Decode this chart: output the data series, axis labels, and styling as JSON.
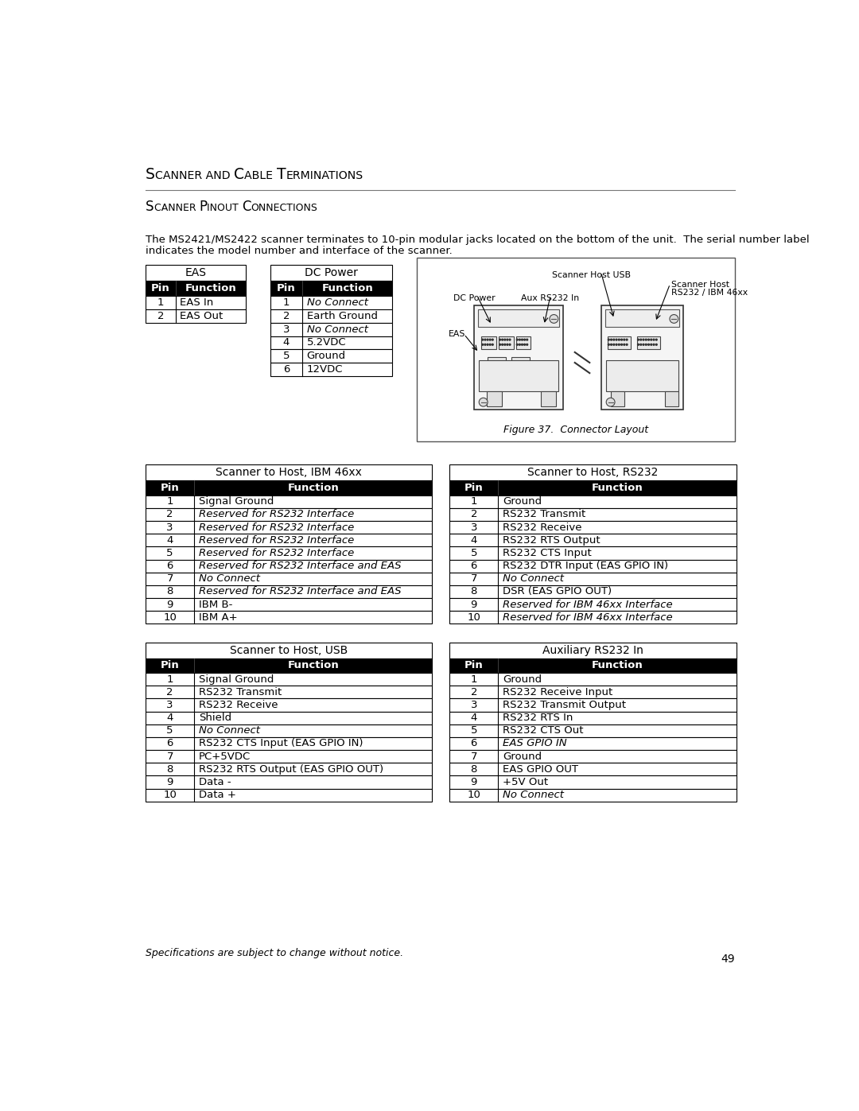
{
  "page_title_parts": [
    "S",
    "CANNER AND ",
    "C",
    "ABLE ",
    "T",
    "ERMINATIONS"
  ],
  "section_title_parts": [
    "S",
    "CANNER ",
    "P",
    "INOUT ",
    "C",
    "ONNECTIONS"
  ],
  "body_text_line1": "The MS2421/MS2422 scanner terminates to 10-pin modular jacks located on the bottom of the unit.  The serial number label",
  "body_text_line2": "indicates the model number and interface of the scanner.",
  "eas_table": {
    "title": "EAS",
    "headers": [
      "Pin",
      "Function"
    ],
    "rows": [
      [
        "1",
        "EAS In",
        false
      ],
      [
        "2",
        "EAS Out",
        false
      ]
    ]
  },
  "dc_power_table": {
    "title": "DC Power",
    "headers": [
      "Pin",
      "Function"
    ],
    "rows": [
      [
        "1",
        "No Connect",
        true
      ],
      [
        "2",
        "Earth Ground",
        false
      ],
      [
        "3",
        "No Connect",
        true
      ],
      [
        "4",
        "5.2VDC",
        false
      ],
      [
        "5",
        "Ground",
        false
      ],
      [
        "6",
        "12VDC",
        false
      ]
    ]
  },
  "figure_caption": "Figure 37.  Connector Layout",
  "fig_labels": {
    "scanner_host_usb": "Scanner Host USB",
    "dc_power": "DC Power",
    "aux_rs232": "Aux RS232 In",
    "scanner_host": "Scanner Host",
    "rs232_ibm": "RS232 / IBM 46xx",
    "eas": "EAS"
  },
  "ibm46xx_table": {
    "title": "Scanner to Host, IBM 46xx",
    "headers": [
      "Pin",
      "Function"
    ],
    "rows": [
      [
        "1",
        "Signal Ground",
        false
      ],
      [
        "2",
        "Reserved for RS232 Interface",
        true
      ],
      [
        "3",
        "Reserved for RS232 Interface",
        true
      ],
      [
        "4",
        "Reserved for RS232 Interface",
        true
      ],
      [
        "5",
        "Reserved for RS232 Interface",
        true
      ],
      [
        "6",
        "Reserved for RS232 Interface and EAS",
        true
      ],
      [
        "7",
        "No Connect",
        true
      ],
      [
        "8",
        "Reserved for RS232 Interface and EAS",
        true
      ],
      [
        "9",
        "IBM B-",
        false
      ],
      [
        "10",
        "IBM A+",
        false
      ]
    ]
  },
  "rs232_table": {
    "title": "Scanner to Host, RS232",
    "headers": [
      "Pin",
      "Function"
    ],
    "rows": [
      [
        "1",
        "Ground",
        false
      ],
      [
        "2",
        "RS232 Transmit",
        false
      ],
      [
        "3",
        "RS232 Receive",
        false
      ],
      [
        "4",
        "RS232 RTS Output",
        false
      ],
      [
        "5",
        "RS232 CTS Input",
        false
      ],
      [
        "6",
        "RS232 DTR Input (EAS GPIO IN)",
        false
      ],
      [
        "7",
        "No Connect",
        true
      ],
      [
        "8",
        "DSR (EAS GPIO OUT)",
        false
      ],
      [
        "9",
        "Reserved for IBM 46xx Interface",
        true
      ],
      [
        "10",
        "Reserved for IBM 46xx Interface",
        true
      ]
    ]
  },
  "usb_table": {
    "title": "Scanner to Host, USB",
    "headers": [
      "Pin",
      "Function"
    ],
    "rows": [
      [
        "1",
        "Signal Ground",
        false
      ],
      [
        "2",
        "RS232 Transmit",
        false
      ],
      [
        "3",
        "RS232 Receive",
        false
      ],
      [
        "4",
        "Shield",
        false
      ],
      [
        "5",
        "No Connect",
        true
      ],
      [
        "6",
        "RS232 CTS Input (EAS GPIO IN)",
        false
      ],
      [
        "7",
        "PC+5VDC",
        false
      ],
      [
        "8",
        "RS232 RTS Output (EAS GPIO OUT)",
        false
      ],
      [
        "9",
        "Data -",
        false
      ],
      [
        "10",
        "Data +",
        false
      ]
    ]
  },
  "aux_rs232_table": {
    "title": "Auxiliary RS232 In",
    "headers": [
      "Pin",
      "Function"
    ],
    "rows": [
      [
        "1",
        "Ground",
        false
      ],
      [
        "2",
        "RS232 Receive Input",
        false
      ],
      [
        "3",
        "RS232 Transmit Output",
        false
      ],
      [
        "4",
        "RS232 RTS In",
        false
      ],
      [
        "5",
        "RS232 CTS Out",
        false
      ],
      [
        "6",
        "EAS GPIO IN",
        true
      ],
      [
        "7",
        "Ground",
        false
      ],
      [
        "8",
        "EAS GPIO OUT",
        false
      ],
      [
        "9",
        "+5V Out",
        false
      ],
      [
        "10",
        "No Connect",
        true
      ]
    ]
  },
  "footer_text": "Specifications are subject to change without notice.",
  "page_number": "49",
  "bg_color": "#ffffff",
  "header_bg": "#000000",
  "header_fg": "#ffffff",
  "border_color": "#000000",
  "title_color": "#000000",
  "text_color": "#000000"
}
